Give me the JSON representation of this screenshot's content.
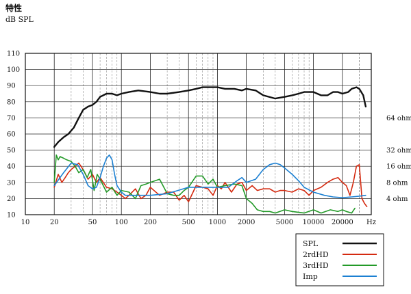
{
  "chart_data": {
    "type": "line",
    "title": "特性",
    "ylabel": "dB SPL",
    "xlabel": "Hz",
    "x_scale": "log",
    "xlim": [
      10,
      40000
    ],
    "ylim": [
      10,
      110
    ],
    "grid": true,
    "y_ticks": [
      "10",
      "20",
      "30",
      "40",
      "50",
      "60",
      "70",
      "80",
      "90",
      "100",
      "110"
    ],
    "x_ticks": [
      {
        "v": 10,
        "label": "10"
      },
      {
        "v": 20,
        "label": "20"
      },
      {
        "v": 50,
        "label": "50"
      },
      {
        "v": 100,
        "label": "100"
      },
      {
        "v": 200,
        "label": "200"
      },
      {
        "v": 500,
        "label": "500"
      },
      {
        "v": 1000,
        "label": "1000"
      },
      {
        "v": 2000,
        "label": "2000"
      },
      {
        "v": 5000,
        "label": "5000"
      },
      {
        "v": 10000,
        "label": "10000"
      },
      {
        "v": 20000,
        "label": "20000"
      }
    ],
    "right_axis": [
      {
        "y": 70,
        "label": "64 ohm"
      },
      {
        "y": 50,
        "label": "32 ohm"
      },
      {
        "y": 40,
        "label": "16 ohm"
      },
      {
        "y": 30,
        "label": "8 ohm"
      },
      {
        "y": 20,
        "label": "4 ohm"
      }
    ],
    "legend_position": "bottom-right",
    "series": [
      {
        "name": "SPL",
        "color": "#111111",
        "x": [
          20,
          22,
          25,
          28,
          32,
          36,
          40,
          45,
          50,
          55,
          60,
          70,
          80,
          90,
          100,
          120,
          150,
          200,
          250,
          300,
          400,
          500,
          600,
          700,
          800,
          1000,
          1200,
          1500,
          1800,
          2000,
          2500,
          3000,
          4000,
          5000,
          6000,
          7000,
          8000,
          10000,
          12000,
          14000,
          16000,
          18000,
          20000,
          23000,
          25000,
          28000,
          30000,
          33000,
          35000
        ],
        "y": [
          52,
          55,
          58,
          60,
          64,
          70,
          75,
          77,
          78,
          80,
          83,
          85,
          85,
          84,
          85,
          86,
          87,
          86,
          85,
          85,
          86,
          87,
          88,
          89,
          89,
          89,
          88,
          88,
          87,
          88,
          87,
          84,
          82,
          83,
          84,
          85,
          86,
          86,
          84,
          84,
          86,
          86,
          85,
          86,
          88,
          89,
          88,
          84,
          77
        ]
      },
      {
        "name": "2rdHD",
        "color": "#d42a10",
        "x": [
          20,
          22,
          24,
          26,
          28,
          30,
          33,
          36,
          40,
          45,
          50,
          55,
          60,
          70,
          80,
          90,
          100,
          110,
          120,
          140,
          160,
          180,
          200,
          250,
          300,
          350,
          400,
          450,
          500,
          600,
          700,
          800,
          900,
          1000,
          1100,
          1200,
          1400,
          1600,
          1800,
          2000,
          2300,
          2600,
          3000,
          3500,
          4000,
          4500,
          5000,
          6000,
          7000,
          8000,
          9000,
          10000,
          12000,
          14000,
          16000,
          18000,
          20000,
          22000,
          24000,
          26000,
          28000,
          30000,
          32000,
          34000,
          36000
        ],
        "y": [
          27,
          35,
          30,
          33,
          36,
          38,
          40,
          42,
          38,
          32,
          35,
          30,
          33,
          27,
          26,
          24,
          22,
          20,
          22,
          26,
          20,
          22,
          27,
          22,
          24,
          24,
          19,
          22,
          18,
          28,
          27,
          26,
          22,
          28,
          26,
          30,
          24,
          29,
          30,
          25,
          28,
          25,
          26,
          26,
          24,
          25,
          25,
          24,
          26,
          25,
          22,
          25,
          27,
          30,
          32,
          33,
          30,
          28,
          22,
          30,
          40,
          41,
          20,
          17,
          15
        ]
      },
      {
        "name": "3rdHD",
        "color": "#239a28",
        "x": [
          20,
          21,
          22,
          23,
          25,
          27,
          30,
          33,
          36,
          40,
          44,
          48,
          52,
          56,
          60,
          70,
          80,
          90,
          100,
          120,
          140,
          160,
          180,
          200,
          250,
          300,
          350,
          400,
          450,
          500,
          600,
          700,
          800,
          900,
          1000,
          1200,
          1500,
          1800,
          2000,
          2300,
          2600,
          3000,
          3500,
          4000,
          5000,
          6000,
          8000,
          10000,
          12000,
          15000,
          18000,
          20000,
          22000,
          25000,
          27000
        ],
        "y": [
          30,
          47,
          44,
          46,
          45,
          44,
          43,
          40,
          36,
          38,
          33,
          38,
          25,
          35,
          32,
          24,
          27,
          22,
          25,
          24,
          20,
          28,
          29,
          30,
          32,
          23,
          22,
          22,
          25,
          27,
          34,
          34,
          29,
          32,
          27,
          28,
          29,
          28,
          20,
          17,
          13,
          12,
          12,
          11,
          13,
          12,
          11,
          13,
          11,
          13,
          12,
          13,
          12,
          11,
          14
        ]
      },
      {
        "name": "Imp",
        "color": "#1c80d2",
        "x": [
          20,
          25,
          30,
          35,
          40,
          45,
          50,
          55,
          60,
          65,
          70,
          75,
          80,
          85,
          90,
          100,
          110,
          130,
          150,
          200,
          300,
          500,
          700,
          1000,
          1300,
          1600,
          1800,
          2000,
          2500,
          3000,
          3500,
          4000,
          4500,
          5000,
          6000,
          7000,
          8000,
          10000,
          13000,
          16000,
          20000,
          25000,
          30000,
          35000
        ],
        "y": [
          28,
          36,
          42,
          41,
          35,
          28,
          26,
          27,
          33,
          40,
          45,
          47,
          44,
          35,
          28,
          24,
          22,
          22,
          22,
          22,
          23,
          27,
          27,
          27,
          27,
          31,
          33,
          30,
          32,
          38,
          41,
          42,
          41,
          39,
          35,
          31,
          27,
          24,
          22,
          21,
          20.5,
          21,
          21.5,
          22
        ]
      }
    ]
  }
}
